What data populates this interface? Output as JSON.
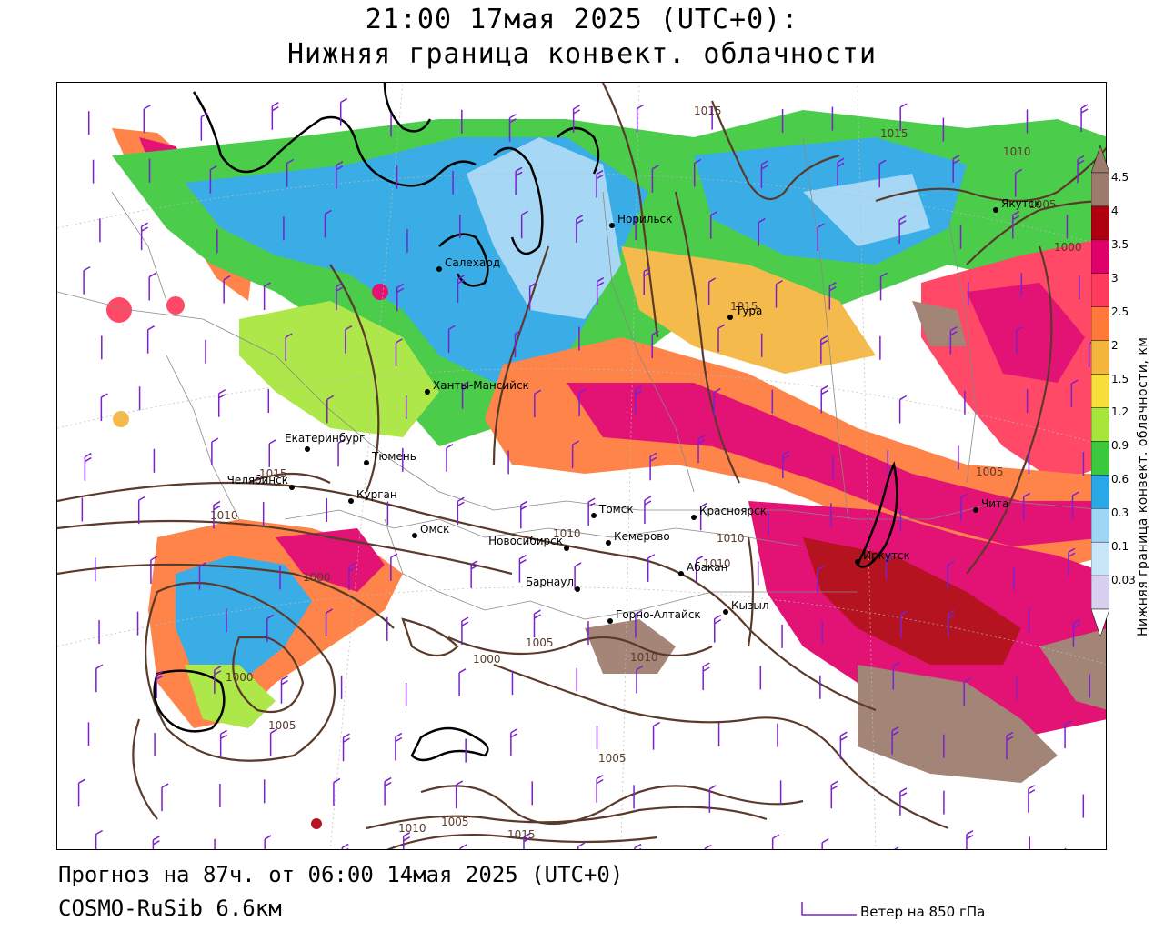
{
  "title": {
    "line1": "21:00 17мая 2025 (UTC+0):",
    "line2": "Нижняя граница конвект. облачности"
  },
  "legend": {
    "title": "Нижняя граница конвект. облачности, км",
    "ticks": [
      "4.5",
      "4",
      "3.5",
      "3",
      "2.5",
      "2",
      "1.5",
      "1.2",
      "0.9",
      "0.6",
      "0.3",
      "0.1",
      "0.03"
    ],
    "colors": [
      "#9c7b6c",
      "#b0000f",
      "#e0006a",
      "#ff3a5a",
      "#ff7a3a",
      "#f4b53c",
      "#f7de3a",
      "#a8e53a",
      "#3cc83c",
      "#2aa7e6",
      "#9fd5f5",
      "#c9e6f8",
      "#d8d0f0"
    ]
  },
  "cities": [
    {
      "name": "Якутск"
    },
    {
      "name": "Норильск"
    },
    {
      "name": "Салехард"
    },
    {
      "name": "Тура"
    },
    {
      "name": "Ханты-Мансийск"
    },
    {
      "name": "Екатеринбург"
    },
    {
      "name": "Тюмень"
    },
    {
      "name": "Челябинск"
    },
    {
      "name": "Курган"
    },
    {
      "name": "Омск"
    },
    {
      "name": "Томск"
    },
    {
      "name": "Красноярск"
    },
    {
      "name": "Новосибирск"
    },
    {
      "name": "Кемерово"
    },
    {
      "name": "Абакан"
    },
    {
      "name": "Барнаул"
    },
    {
      "name": "Иркутск"
    },
    {
      "name": "Чита"
    },
    {
      "name": "Кызыл"
    },
    {
      "name": "Горно-Алтайск"
    }
  ],
  "isobar_labels": [
    "1015",
    "1015",
    "1005",
    "1000",
    "1015",
    "1015",
    "1010",
    "1010",
    "1010",
    "1010",
    "1005",
    "1000",
    "1005",
    "1000",
    "1005",
    "1010",
    "1000",
    "1005",
    "1005",
    "1010",
    "1015",
    "1010"
  ],
  "footer": {
    "forecast": "Прогноз на 87ч. от 06:00 14мая 2025 (UTC+0)",
    "model": "COSMO-RuSib 6.6км",
    "wind_legend": "Ветер на 850 гПа"
  },
  "colors": {
    "isobar": "#5a3a2a",
    "wind_barb": "#7a22cc",
    "coast": "#000000",
    "borders": "#888888"
  }
}
